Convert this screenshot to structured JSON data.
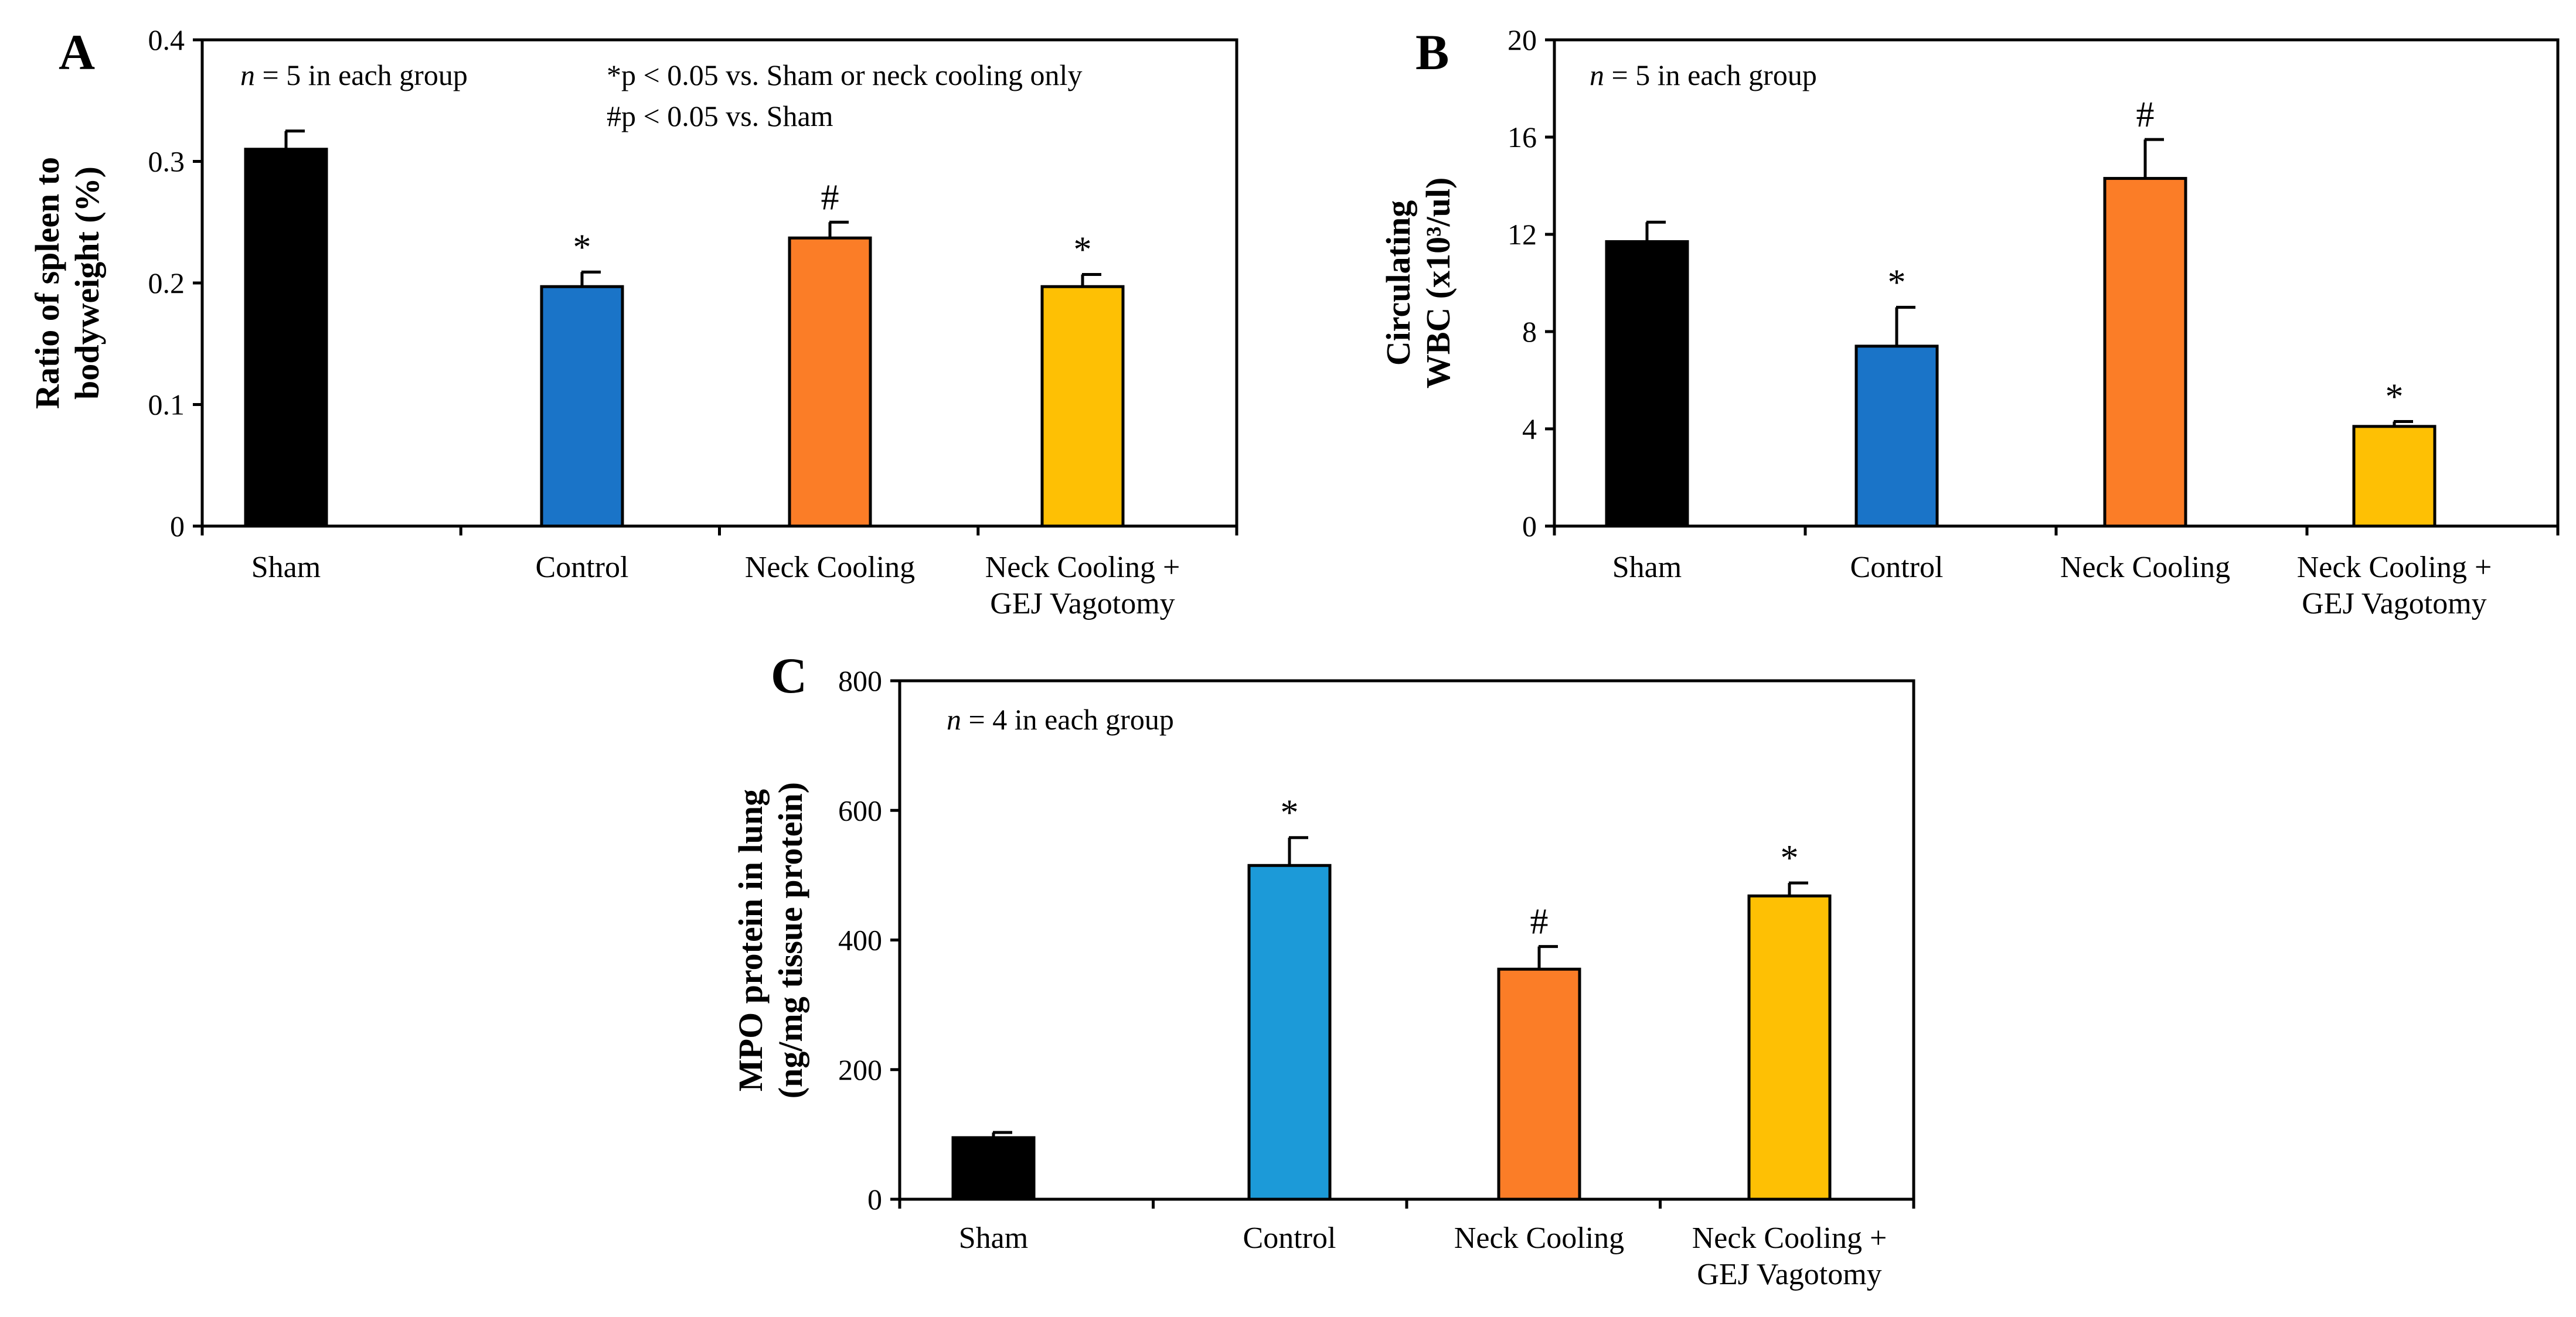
{
  "chart_data": [
    {
      "type": "bar",
      "panel": "A",
      "title": "",
      "xlabel": "",
      "ylabel": [
        "Ratio of spleen to",
        "bodyweight (%)"
      ],
      "ylim": [
        0,
        0.4
      ],
      "yticks": [
        "0",
        "0.1",
        "0.2",
        "0.3",
        "0.4"
      ],
      "categories": [
        [
          "Sham"
        ],
        [
          "Control"
        ],
        [
          "Neck Cooling"
        ],
        [
          "Neck Cooling +",
          "GEJ Vagotomy"
        ]
      ],
      "values": [
        0.31,
        0.197,
        0.237,
        0.197
      ],
      "errors": [
        0.015,
        0.012,
        0.013,
        0.01
      ],
      "significance": [
        "",
        "*",
        "#",
        "*"
      ],
      "colors": [
        "#000000",
        "#1a74c8",
        "#fb7d27",
        "#fec004"
      ],
      "annotations": {
        "n_prefix": "n",
        "n_text": " = 5 in each group",
        "legend_line1": "*p < 0.05 vs. Sham or neck cooling only",
        "legend_line2": "#p < 0.05 vs. Sham"
      }
    },
    {
      "type": "bar",
      "panel": "B",
      "title": "",
      "xlabel": "",
      "ylabel": [
        "Circulating",
        "WBC (x10³/ul)"
      ],
      "ylim": [
        0,
        20
      ],
      "yticks": [
        "0",
        "4",
        "8",
        "12",
        "16",
        "20"
      ],
      "categories": [
        [
          "Sham"
        ],
        [
          "Control"
        ],
        [
          "Neck Cooling"
        ],
        [
          "Neck Cooling +",
          "GEJ Vagotomy"
        ]
      ],
      "values": [
        11.7,
        7.4,
        14.3,
        4.1
      ],
      "errors": [
        0.8,
        1.6,
        1.6,
        0.2
      ],
      "significance": [
        "",
        "*",
        "#",
        "*"
      ],
      "colors": [
        "#000000",
        "#1a74c8",
        "#fb7d27",
        "#fec004"
      ],
      "annotations": {
        "n_prefix": "n",
        "n_text": " = 5 in each group"
      }
    },
    {
      "type": "bar",
      "panel": "C",
      "title": "",
      "xlabel": "",
      "ylabel": [
        "MPO protein  in lung",
        "(ng/mg tissue protein)"
      ],
      "ylim": [
        0,
        800
      ],
      "yticks": [
        "0",
        "200",
        "400",
        "600",
        "800"
      ],
      "categories": [
        [
          "Sham"
        ],
        [
          "Control"
        ],
        [
          "Neck Cooling"
        ],
        [
          "Neck Cooling +",
          "GEJ Vagotomy"
        ]
      ],
      "values": [
        95,
        515,
        355,
        468
      ],
      "errors": [
        8,
        43,
        35,
        20
      ],
      "significance": [
        "",
        "*",
        "#",
        "*"
      ],
      "colors": [
        "#000000",
        "#1c9ad8",
        "#fb7d27",
        "#fec004"
      ],
      "annotations": {
        "n_prefix": "n",
        "n_text": " = 4 in each group"
      }
    }
  ]
}
